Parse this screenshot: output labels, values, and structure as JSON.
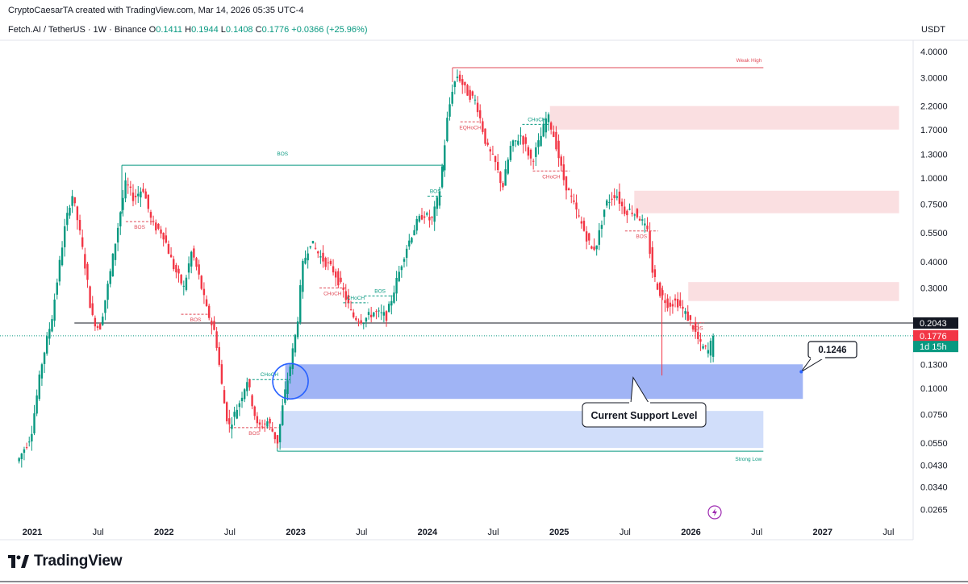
{
  "header": {
    "created_by": "CryptoCaesarTA created with TradingView.com, Mar 14, 2026 05:35 UTC-4",
    "symbol": "Fetch.AI / TetherUS · 1W · Binance",
    "o_label": "O",
    "o_value": "0.1411",
    "h_label": "H",
    "h_value": "0.1944",
    "l_label": "L",
    "l_value": "0.1408",
    "c_label": "C",
    "c_value": "0.1776",
    "change": "+0.0366 (+25.96%)",
    "currency": "USDT"
  },
  "footer": {
    "logo_text": "TradingView"
  },
  "colors": {
    "up": "#089981",
    "down": "#f23645",
    "support": "#2962ff",
    "zone": "#f23645"
  },
  "chart_data": {
    "type": "candlestick",
    "scale": "log",
    "title": "Fetch.AI / TetherUS · 1W · Binance",
    "x_range": [
      "2020-12",
      "2027-09"
    ],
    "x_ticks": [
      {
        "label": "2021",
        "t": 2021.0,
        "bold": true
      },
      {
        "label": "Jul",
        "t": 2021.5,
        "bold": false
      },
      {
        "label": "2022",
        "t": 2022.0,
        "bold": true
      },
      {
        "label": "Jul",
        "t": 2022.5,
        "bold": false
      },
      {
        "label": "2023",
        "t": 2023.0,
        "bold": true
      },
      {
        "label": "Jul",
        "t": 2023.5,
        "bold": false
      },
      {
        "label": "2024",
        "t": 2024.0,
        "bold": true
      },
      {
        "label": "Jul",
        "t": 2024.5,
        "bold": false
      },
      {
        "label": "2025",
        "t": 2025.0,
        "bold": true
      },
      {
        "label": "Jul",
        "t": 2025.5,
        "bold": false
      },
      {
        "label": "2026",
        "t": 2026.0,
        "bold": true
      },
      {
        "label": "Jul",
        "t": 2026.5,
        "bold": false
      },
      {
        "label": "2027",
        "t": 2027.0,
        "bold": true
      },
      {
        "label": "Jul",
        "t": 2027.5,
        "bold": false
      }
    ],
    "y_ticks": [
      "4.0000",
      "3.0000",
      "2.2000",
      "1.7000",
      "1.3000",
      "1.0000",
      "0.7500",
      "0.5500",
      "0.4000",
      "0.3000",
      "0.1300",
      "0.1000",
      "0.0750",
      "0.0550",
      "0.0430",
      "0.0340",
      "0.0265"
    ],
    "price_labels": [
      {
        "value": 0.2043,
        "text": "0.2043",
        "style": "dark"
      },
      {
        "value": 0.1776,
        "text": "0.1776",
        "style": "red"
      },
      {
        "value": 0.158,
        "text": "1d 15h",
        "style": "green"
      }
    ],
    "path_points": [
      [
        2020.9,
        0.045
      ],
      [
        2021.0,
        0.06
      ],
      [
        2021.08,
        0.13
      ],
      [
        2021.16,
        0.22
      ],
      [
        2021.25,
        0.55
      ],
      [
        2021.31,
        0.85
      ],
      [
        2021.36,
        0.6
      ],
      [
        2021.42,
        0.35
      ],
      [
        2021.46,
        0.22
      ],
      [
        2021.52,
        0.19
      ],
      [
        2021.6,
        0.35
      ],
      [
        2021.68,
        0.7
      ],
      [
        2021.72,
        0.95
      ],
      [
        2021.78,
        0.8
      ],
      [
        2021.85,
        0.9
      ],
      [
        2021.92,
        0.6
      ],
      [
        2022.0,
        0.55
      ],
      [
        2022.08,
        0.38
      ],
      [
        2022.16,
        0.3
      ],
      [
        2022.22,
        0.45
      ],
      [
        2022.27,
        0.35
      ],
      [
        2022.33,
        0.24
      ],
      [
        2022.4,
        0.18
      ],
      [
        2022.46,
        0.09
      ],
      [
        2022.5,
        0.065
      ],
      [
        2022.58,
        0.085
      ],
      [
        2022.64,
        0.11
      ],
      [
        2022.72,
        0.065
      ],
      [
        2022.8,
        0.07
      ],
      [
        2022.87,
        0.055
      ],
      [
        2022.92,
        0.09
      ],
      [
        2022.96,
        0.12
      ],
      [
        2023.02,
        0.2
      ],
      [
        2023.06,
        0.38
      ],
      [
        2023.12,
        0.5
      ],
      [
        2023.2,
        0.42
      ],
      [
        2023.3,
        0.36
      ],
      [
        2023.38,
        0.28
      ],
      [
        2023.44,
        0.22
      ],
      [
        2023.52,
        0.21
      ],
      [
        2023.6,
        0.23
      ],
      [
        2023.7,
        0.22
      ],
      [
        2023.76,
        0.3
      ],
      [
        2023.84,
        0.45
      ],
      [
        2023.92,
        0.6
      ],
      [
        2023.98,
        0.68
      ],
      [
        2024.04,
        0.62
      ],
      [
        2024.1,
        0.85
      ],
      [
        2024.16,
        1.9
      ],
      [
        2024.2,
        2.7
      ],
      [
        2024.24,
        3.1
      ],
      [
        2024.3,
        2.6
      ],
      [
        2024.38,
        2.3
      ],
      [
        2024.46,
        1.4
      ],
      [
        2024.52,
        1.2
      ],
      [
        2024.58,
        0.9
      ],
      [
        2024.64,
        1.4
      ],
      [
        2024.72,
        1.6
      ],
      [
        2024.8,
        1.2
      ],
      [
        2024.86,
        1.5
      ],
      [
        2024.92,
        2.0
      ],
      [
        2024.98,
        1.5
      ],
      [
        2025.04,
        1.0
      ],
      [
        2025.1,
        0.8
      ],
      [
        2025.18,
        0.6
      ],
      [
        2025.26,
        0.45
      ],
      [
        2025.3,
        0.5
      ],
      [
        2025.36,
        0.75
      ],
      [
        2025.44,
        0.85
      ],
      [
        2025.5,
        0.7
      ],
      [
        2025.56,
        0.7
      ],
      [
        2025.62,
        0.65
      ],
      [
        2025.68,
        0.55
      ],
      [
        2025.72,
        0.35
      ],
      [
        2025.78,
        0.28
      ],
      [
        2025.84,
        0.25
      ],
      [
        2025.9,
        0.26
      ],
      [
        2025.96,
        0.23
      ],
      [
        2026.02,
        0.2
      ],
      [
        2026.08,
        0.16
      ],
      [
        2026.14,
        0.15
      ],
      [
        2026.18,
        0.1776
      ]
    ],
    "weak_high": {
      "label": "Weak High",
      "price": 3.35,
      "t_start": 2024.19,
      "t_end": 2026.55
    },
    "strong_low": {
      "label": "Strong Low",
      "price": 0.0502,
      "t_start": 2022.86,
      "t_end": 2026.55
    },
    "horizontal_line": {
      "price": 0.2043,
      "t_start": 2021.32
    },
    "dotted_current": {
      "price": 0.1776
    },
    "supply_zones": [
      {
        "t_start": 2024.93,
        "t_end": 2027.58,
        "low": 1.7,
        "high": 2.2
      },
      {
        "t_start": 2025.57,
        "t_end": 2027.58,
        "low": 0.68,
        "high": 0.87
      },
      {
        "t_start": 2025.98,
        "t_end": 2027.58,
        "low": 0.26,
        "high": 0.32
      }
    ],
    "support_zones": [
      {
        "label": "Current Support Level",
        "t_start": 2022.92,
        "t_end": 2026.85,
        "low": 0.089,
        "high": 0.13,
        "style": "dark"
      },
      {
        "t_start": 2022.88,
        "t_end": 2026.55,
        "low": 0.052,
        "high": 0.078,
        "style": "light"
      }
    ],
    "support_callout": {
      "text": "Current Support Level",
      "anchor_t": 2025.58,
      "anchor_price": 0.1125
    },
    "price_callout": {
      "text": "0.1246",
      "anchor_t": 2026.85,
      "anchor_price": 0.122
    },
    "highlight_circle": {
      "t": 2022.96,
      "price": 0.108
    },
    "structure_lines": [
      {
        "label": "BOS",
        "color": "green",
        "t_start": 2021.68,
        "t_end": 2024.12,
        "price": 1.15
      },
      {
        "label": "BOS",
        "color": "red",
        "t_start": 2021.71,
        "t_end": 2021.92,
        "price": 0.62,
        "dashed": true
      },
      {
        "label": "BOS",
        "color": "red",
        "t_start": 2022.13,
        "t_end": 2022.35,
        "price": 0.225,
        "dashed": true
      },
      {
        "label": "BOS",
        "color": "red",
        "t_start": 2022.5,
        "t_end": 2022.87,
        "price": 0.065,
        "dashed": true
      },
      {
        "label": "CHoCH",
        "color": "green",
        "t_start": 2022.64,
        "t_end": 2022.96,
        "price": 0.11,
        "dashed": true
      },
      {
        "label": "CHoCH",
        "color": "red",
        "t_start": 2023.18,
        "t_end": 2023.38,
        "price": 0.3,
        "dashed": true
      },
      {
        "label": "CHoCH",
        "color": "green",
        "t_start": 2023.36,
        "t_end": 2023.55,
        "price": 0.255,
        "dashed": true
      },
      {
        "label": "BOS",
        "color": "green",
        "t_start": 2023.52,
        "t_end": 2023.76,
        "price": 0.275,
        "dashed": true
      },
      {
        "label": "BOS",
        "color": "green",
        "t_start": 2024.0,
        "t_end": 2024.12,
        "price": 0.82,
        "dashed": true
      },
      {
        "label": "EQHoCH",
        "color": "red",
        "t_start": 2024.25,
        "t_end": 2024.4,
        "price": 1.85,
        "dashed": true
      },
      {
        "label": "CHoCH",
        "color": "green",
        "t_start": 2024.72,
        "t_end": 2024.94,
        "price": 1.8,
        "dashed": true
      },
      {
        "label": "CHoCH",
        "color": "red",
        "t_start": 2024.8,
        "t_end": 2025.08,
        "price": 1.08,
        "dashed": true
      },
      {
        "label": "BOS",
        "color": "red",
        "t_start": 2025.5,
        "t_end": 2025.75,
        "price": 0.56,
        "dashed": true
      },
      {
        "label": "BOS",
        "color": "red",
        "t_start": 2026.0,
        "t_end": 2026.1,
        "price": 0.205,
        "dashed": true
      }
    ]
  }
}
